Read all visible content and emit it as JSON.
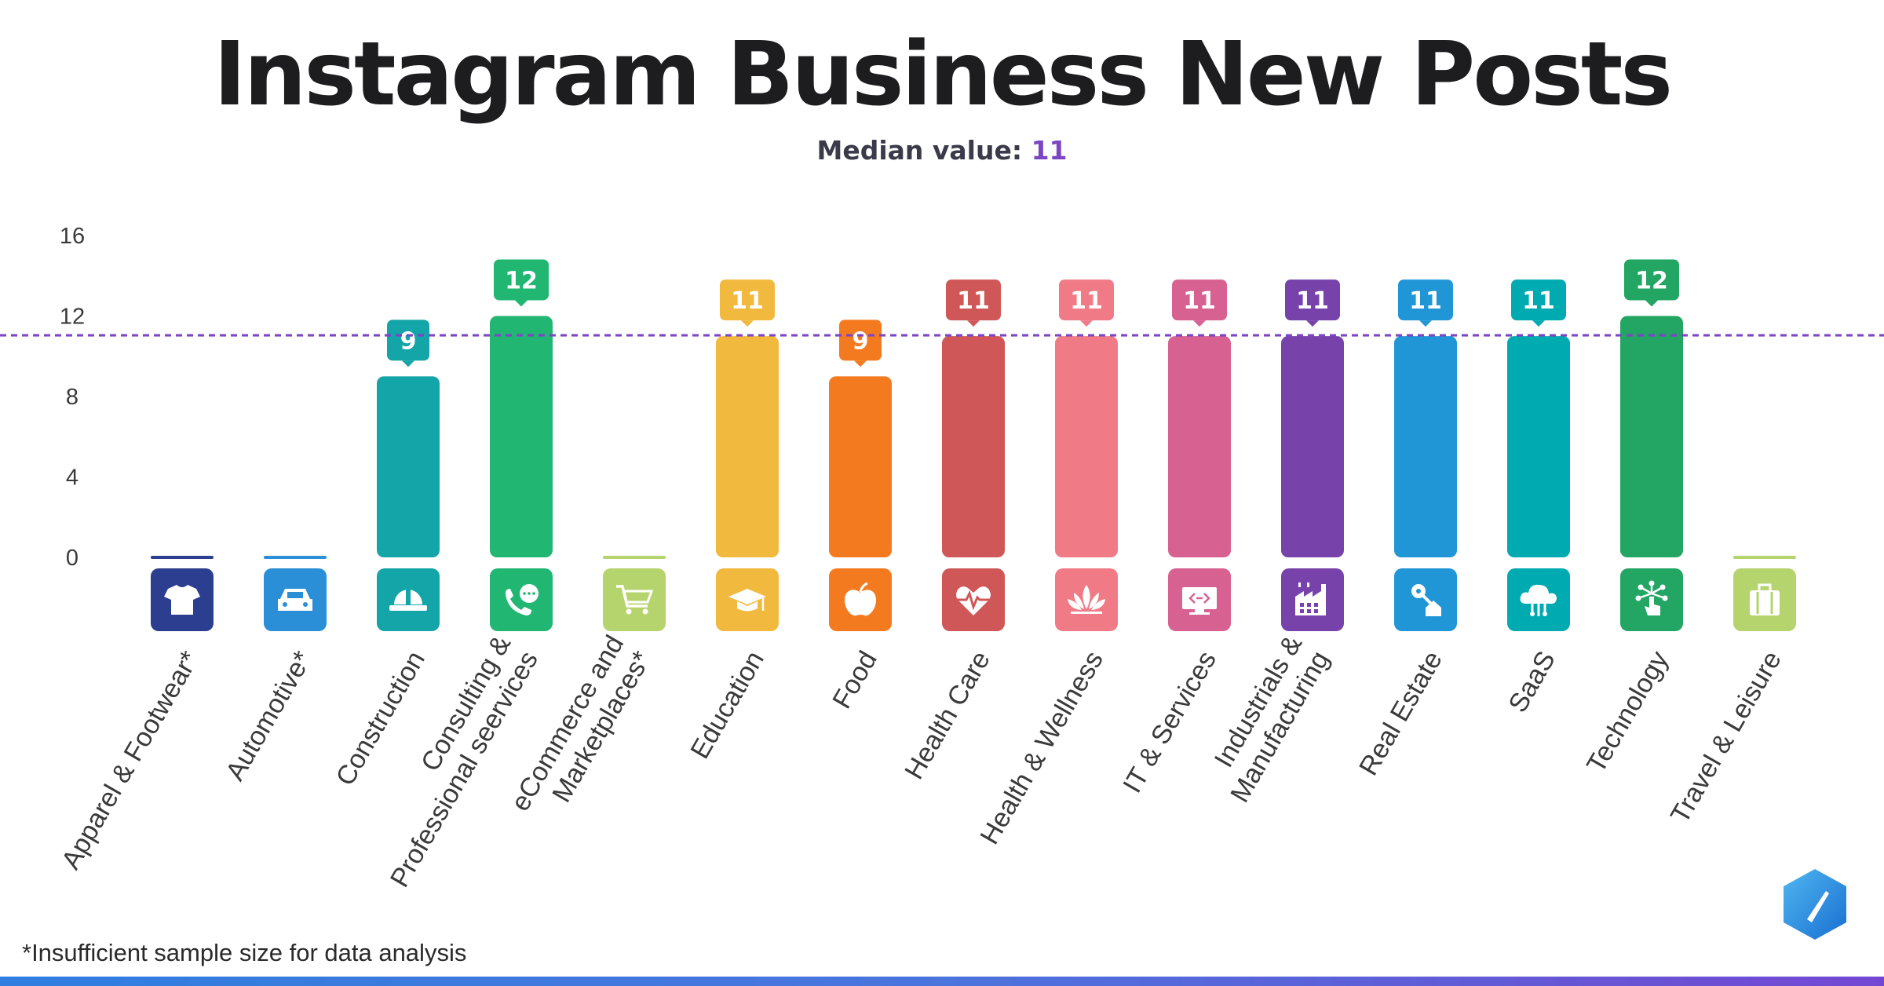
{
  "title": "Instagram Business New Posts",
  "subtitle": {
    "label": "Median value: ",
    "value": "11"
  },
  "footnote": "*Insufficient sample size for data analysis",
  "colors": {
    "median_line": "#7b45c4",
    "median_value": "#7b45c4",
    "title": "#1d1d1f"
  },
  "chart_data": {
    "type": "bar",
    "title": "Instagram Business New Posts",
    "xlabel": "",
    "ylabel": "",
    "ylim": [
      0,
      16
    ],
    "yticks": [
      0,
      4,
      8,
      12,
      16
    ],
    "median": 11,
    "categories": [
      "Apparel & Footwear*",
      "Automotive*",
      "Construction",
      "Consulting & Professional seervices",
      "eCommerce and Marketplaces*",
      "Education",
      "Food",
      "Health Care",
      "Health & Wellness",
      "IT & Services",
      "Industrials & Manufacturing",
      "Real Estate",
      "SaaS",
      "Technology",
      "Travel & Leisure"
    ],
    "label_lines": [
      [
        "Apparel & Footwear*"
      ],
      [
        "Automotive*"
      ],
      [
        "Construction"
      ],
      [
        "Consulting &",
        "Professional seervices"
      ],
      [
        "eCommerce and",
        "Marketplaces*"
      ],
      [
        "Education"
      ],
      [
        "Food"
      ],
      [
        "Health Care"
      ],
      [
        "Health & Wellness"
      ],
      [
        "IT & Services"
      ],
      [
        "Industrials &",
        "Manufacturing"
      ],
      [
        "Real Estate"
      ],
      [
        "SaaS"
      ],
      [
        "Technology"
      ],
      [
        "Travel & Leisure"
      ]
    ],
    "values": [
      0,
      0,
      9,
      12,
      0,
      11,
      9,
      11,
      11,
      11,
      11,
      11,
      11,
      12,
      0
    ],
    "value_labels": [
      "",
      "",
      "9",
      "12",
      "",
      "11",
      "9",
      "11",
      "11",
      "11",
      "11",
      "11",
      "11",
      "12",
      ""
    ],
    "colors": [
      "#2c3e8f",
      "#2a8fd6",
      "#14a5a8",
      "#22b673",
      "#b6d46e",
      "#f2b93f",
      "#f47a20",
      "#d05758",
      "#f07b86",
      "#d76191",
      "#7743ab",
      "#2196d6",
      "#00aab1",
      "#23a564",
      "#b6d46e"
    ],
    "icons": [
      "tshirt-icon",
      "car-icon",
      "hardhat-icon",
      "phone-chat-icon",
      "cart-icon",
      "graduation-cap-icon",
      "apple-icon",
      "heartbeat-icon",
      "lotus-icon",
      "monitor-code-icon",
      "factory-icon",
      "house-key-icon",
      "cloud-icon",
      "touch-network-icon",
      "suitcase-icon"
    ]
  }
}
